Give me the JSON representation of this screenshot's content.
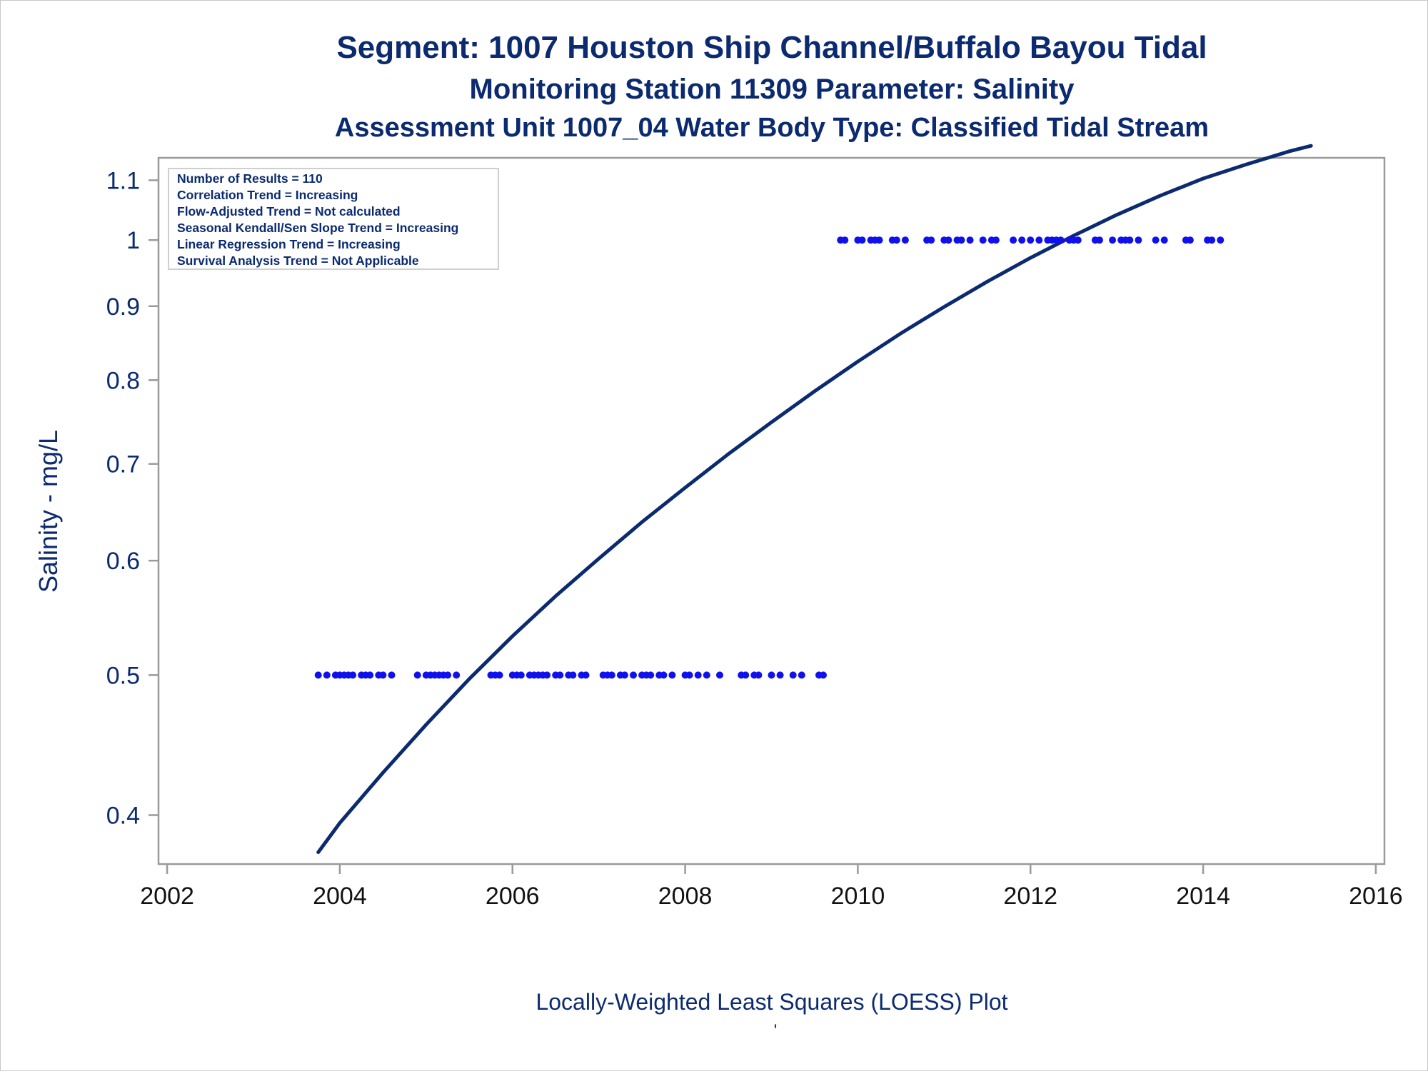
{
  "chart_data": {
    "type": "scatter",
    "title": "Segment: 1007  Houston Ship Channel/Buffalo Bayou Tidal",
    "subtitles": [
      "Monitoring Station 11309 Parameter: Salinity",
      "Assessment Unit 1007_04   Water Body Type: Classified Tidal Stream"
    ],
    "ylabel": "Salinity - mg/L",
    "xlabel": "Locally-Weighted Least Squares (LOESS) Plot",
    "footnote": "'",
    "y_scale": "log",
    "xlim": [
      2001.9,
      2016.1
    ],
    "ylim": [
      0.37,
      1.14
    ],
    "x_ticks": [
      2002,
      2004,
      2006,
      2008,
      2010,
      2012,
      2014,
      2016
    ],
    "y_ticks": [
      0.4,
      0.5,
      0.6,
      0.7,
      0.8,
      0.9,
      1,
      1.1
    ],
    "y_tick_labels": [
      "0.4",
      "0.5",
      "0.6",
      "0.7",
      "0.8",
      "0.9",
      "1",
      "1.1"
    ],
    "grid": false,
    "colors": {
      "text": "#0b2a6f",
      "axis": "#9a9a9a",
      "points": "#1010ee",
      "loess": "#0b2a6f"
    },
    "inset_box": {
      "position": "top-left",
      "lines": [
        "Number of Results = 110",
        "Correlation Trend = Increasing",
        "Flow-Adjusted Trend = Not calculated",
        "Seasonal Kendall/Sen Slope Trend = Increasing",
        "Linear Regression Trend = Increasing",
        "Survival Analysis Trend = Not Applicable"
      ]
    },
    "series": [
      {
        "kind": "scatter",
        "x": [
          2003.75,
          2003.85,
          2003.95,
          2004.0,
          2004.05,
          2004.1,
          2004.15,
          2004.25,
          2004.3,
          2004.35,
          2004.45,
          2004.5,
          2004.6,
          2004.9,
          2005.0,
          2005.05,
          2005.1,
          2005.15,
          2005.2,
          2005.25,
          2005.35,
          2005.75,
          2005.8,
          2005.85,
          2006.0,
          2006.05,
          2006.1,
          2006.2,
          2006.25,
          2006.3,
          2006.35,
          2006.4,
          2006.5,
          2006.55,
          2006.65,
          2006.7,
          2006.8,
          2006.85,
          2007.05,
          2007.1,
          2007.15,
          2007.25,
          2007.3,
          2007.4,
          2007.5,
          2007.55,
          2007.6,
          2007.7,
          2007.75,
          2007.85,
          2008.0,
          2008.05,
          2008.15,
          2008.25,
          2008.4,
          2008.65,
          2008.7,
          2008.8,
          2008.85,
          2009.0,
          2009.1,
          2009.25,
          2009.35,
          2009.55,
          2009.6,
          2009.8,
          2009.85,
          2010.0,
          2010.05,
          2010.15,
          2010.2,
          2010.25,
          2010.4,
          2010.45,
          2010.55,
          2010.8,
          2010.85,
          2011.0,
          2011.05,
          2011.15,
          2011.2,
          2011.3,
          2011.45,
          2011.55,
          2011.6,
          2011.8,
          2011.9,
          2012.0,
          2012.1,
          2012.2,
          2012.25,
          2012.3,
          2012.35,
          2012.45,
          2012.5,
          2012.55,
          2012.75,
          2012.8,
          2012.95,
          2013.05,
          2013.1,
          2013.15,
          2013.25,
          2013.45,
          2013.55,
          2013.8,
          2013.85,
          2014.05,
          2014.1,
          2014.2
        ],
        "y": [
          0.5,
          0.5,
          0.5,
          0.5,
          0.5,
          0.5,
          0.5,
          0.5,
          0.5,
          0.5,
          0.5,
          0.5,
          0.5,
          0.5,
          0.5,
          0.5,
          0.5,
          0.5,
          0.5,
          0.5,
          0.5,
          0.5,
          0.5,
          0.5,
          0.5,
          0.5,
          0.5,
          0.5,
          0.5,
          0.5,
          0.5,
          0.5,
          0.5,
          0.5,
          0.5,
          0.5,
          0.5,
          0.5,
          0.5,
          0.5,
          0.5,
          0.5,
          0.5,
          0.5,
          0.5,
          0.5,
          0.5,
          0.5,
          0.5,
          0.5,
          0.5,
          0.5,
          0.5,
          0.5,
          0.5,
          0.5,
          0.5,
          0.5,
          0.5,
          0.5,
          0.5,
          0.5,
          0.5,
          0.5,
          0.5,
          1,
          1,
          1,
          1,
          1,
          1,
          1,
          1,
          1,
          1,
          1,
          1,
          1,
          1,
          1,
          1,
          1,
          1,
          1,
          1,
          1,
          1,
          1,
          1,
          1,
          1,
          1,
          1,
          1,
          1,
          1,
          1,
          1,
          1,
          1,
          1,
          1,
          1,
          1,
          1,
          1,
          1,
          1,
          1,
          1
        ]
      },
      {
        "kind": "line",
        "x": [
          2003.75,
          2004.0,
          2004.5,
          2005.0,
          2005.5,
          2006.0,
          2006.5,
          2007.0,
          2007.5,
          2008.0,
          2008.5,
          2009.0,
          2009.5,
          2010.0,
          2010.5,
          2011.0,
          2011.5,
          2012.0,
          2012.5,
          2013.0,
          2013.5,
          2014.0,
          2014.5,
          2015.0,
          2015.25
        ],
        "y": [
          0.377,
          0.395,
          0.428,
          0.462,
          0.497,
          0.532,
          0.567,
          0.602,
          0.638,
          0.674,
          0.711,
          0.748,
          0.786,
          0.824,
          0.862,
          0.899,
          0.936,
          0.972,
          1.007,
          1.041,
          1.073,
          1.103,
          1.128,
          1.152,
          1.162
        ]
      }
    ]
  }
}
